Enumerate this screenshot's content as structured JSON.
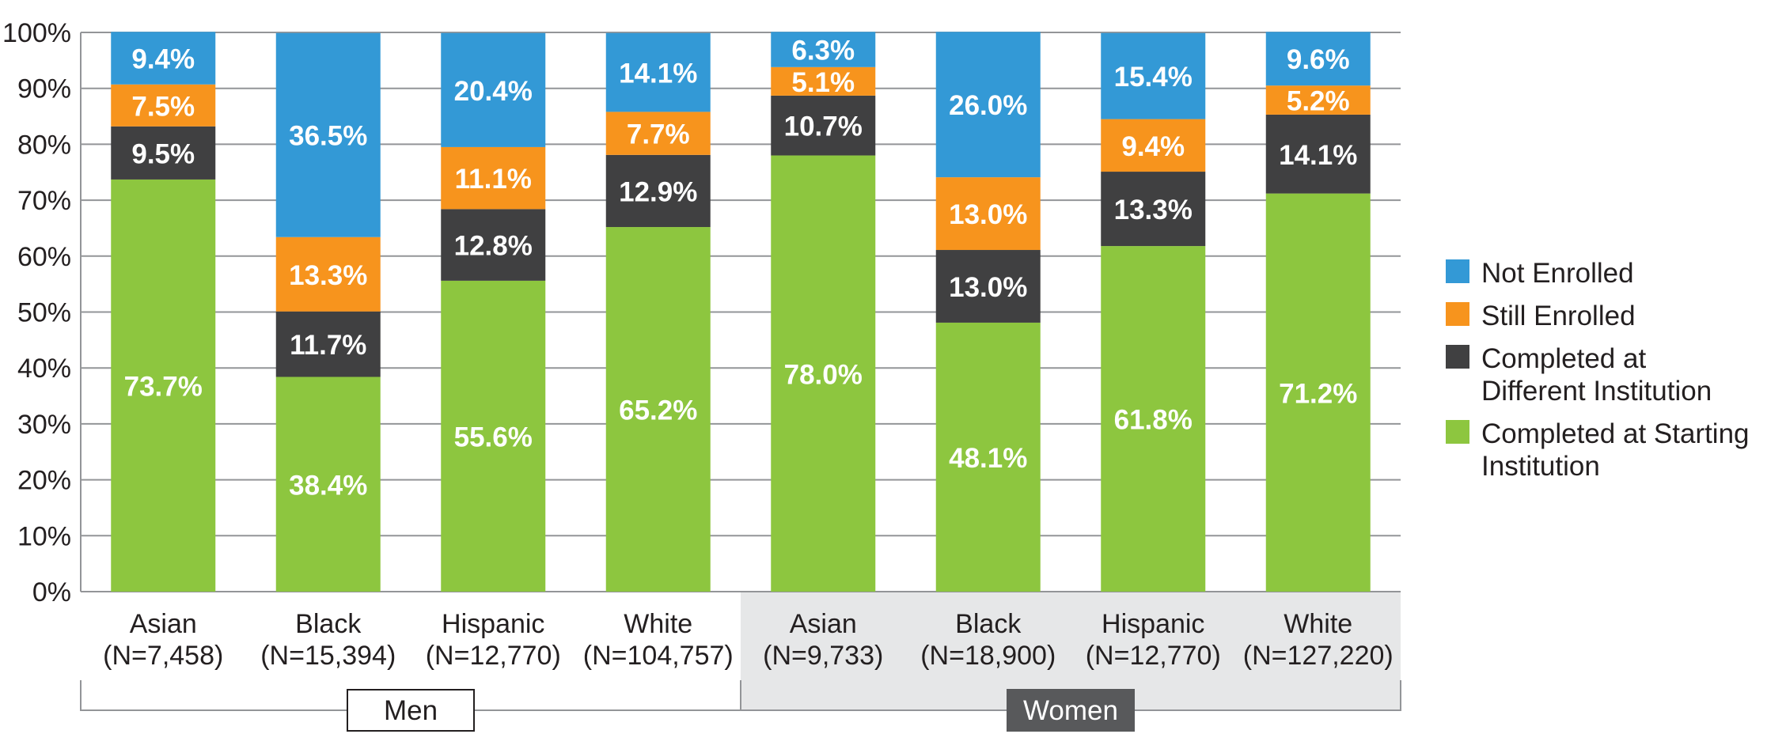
{
  "chart_data": {
    "type": "bar",
    "stacked": true,
    "y_axis": {
      "ticks": [
        "0%",
        "10%",
        "20%",
        "30%",
        "40%",
        "50%",
        "60%",
        "70%",
        "80%",
        "90%",
        "100%"
      ],
      "ylim": [
        0,
        100
      ],
      "grid": true
    },
    "categories": [
      {
        "name": "Asian",
        "n": "(N=7,458)",
        "group": "Men"
      },
      {
        "name": "Black",
        "n": "(N=15,394)",
        "group": "Men"
      },
      {
        "name": "Hispanic",
        "n": "(N=12,770)",
        "group": "Men"
      },
      {
        "name": "White",
        "n": "(N=104,757)",
        "group": "Men"
      },
      {
        "name": "Asian",
        "n": "(N=9,733)",
        "group": "Women"
      },
      {
        "name": "Black",
        "n": "(N=18,900)",
        "group": "Women"
      },
      {
        "name": "Hispanic",
        "n": "(N=12,770)",
        "group": "Women"
      },
      {
        "name": "White",
        "n": "(N=127,220)",
        "group": "Women"
      }
    ],
    "groups": [
      {
        "label": "Men",
        "style": "light"
      },
      {
        "label": "Women",
        "style": "dark"
      }
    ],
    "series": [
      {
        "name": "Completed at Starting Institution",
        "legend_lines": [
          "Completed at Starting",
          "Institution"
        ],
        "color": "#8dc63f",
        "values": [
          73.7,
          38.4,
          55.6,
          65.2,
          78.0,
          48.1,
          61.8,
          71.2
        ],
        "labels": [
          "73.7%",
          "38.4%",
          "55.6%",
          "65.2%",
          "78.0%",
          "48.1%",
          "61.8%",
          "71.2%"
        ]
      },
      {
        "name": "Completed at Different Institution",
        "legend_lines": [
          "Completed at",
          "Different Institution"
        ],
        "color": "#404041",
        "values": [
          9.5,
          11.7,
          12.8,
          12.9,
          10.7,
          13.0,
          13.3,
          14.1
        ],
        "labels": [
          "9.5%",
          "11.7%",
          "12.8%",
          "12.9%",
          "10.7%",
          "13.0%",
          "13.3%",
          "14.1%"
        ]
      },
      {
        "name": "Still Enrolled",
        "legend_lines": [
          "Still Enrolled"
        ],
        "color": "#f7941d",
        "values": [
          7.5,
          13.3,
          11.1,
          7.7,
          5.1,
          13.0,
          9.4,
          5.2
        ],
        "labels": [
          "7.5%",
          "13.3%",
          "11.1%",
          "7.7%",
          "5.1%",
          "13.0%",
          "9.4%",
          "5.2%"
        ]
      },
      {
        "name": "Not Enrolled",
        "legend_lines": [
          "Not Enrolled"
        ],
        "color": "#3399d6",
        "values": [
          9.4,
          36.5,
          20.4,
          14.1,
          6.3,
          26.0,
          15.4,
          9.6
        ],
        "labels": [
          "9.4%",
          "36.5%",
          "20.4%",
          "14.1%",
          "6.3%",
          "26.0%",
          "15.4%",
          "9.6%"
        ]
      }
    ],
    "legend_order": [
      3,
      2,
      1,
      0
    ],
    "legend_position": "right"
  },
  "colors": {
    "grid": "#939598",
    "women_band": "#e6e7e8",
    "women_label_bg": "#58595b",
    "men_label_bg": "#ffffff",
    "text": "#231f20"
  }
}
